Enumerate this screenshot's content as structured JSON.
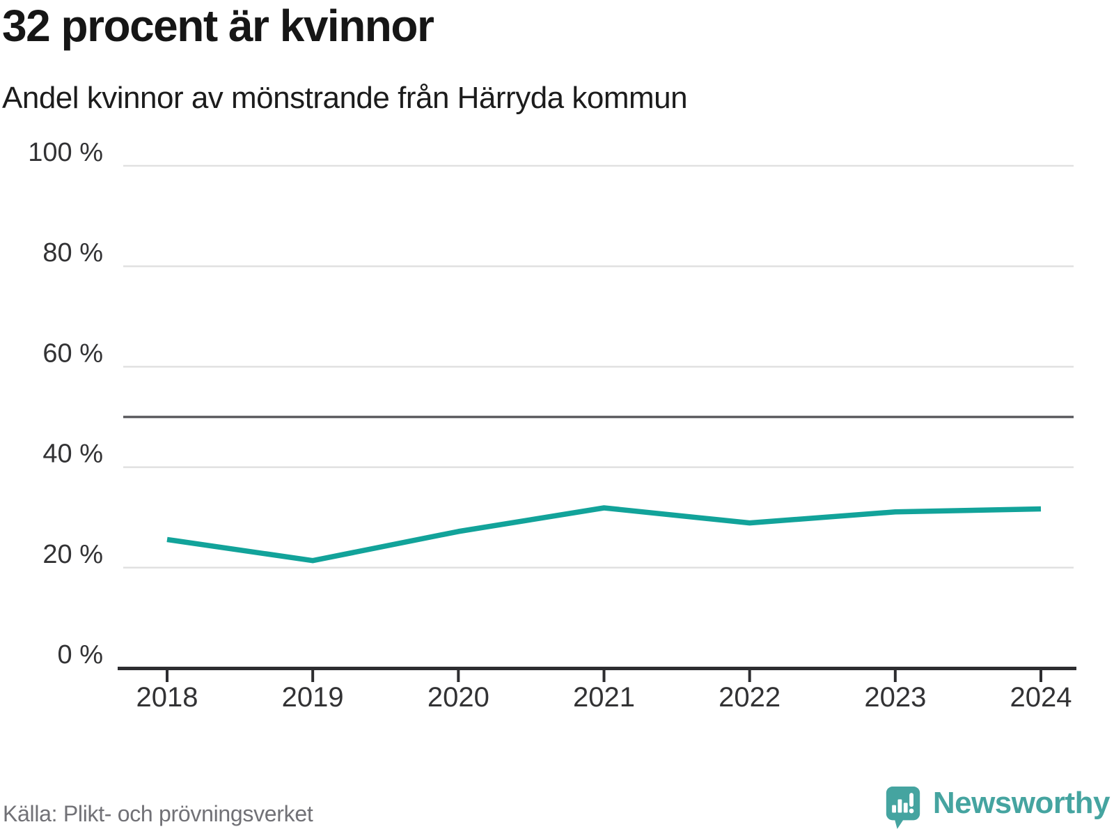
{
  "title": "32 procent är kvinnor",
  "subtitle": "Andel kvinnor av mönstrande från Härryda kommun",
  "source": "Källa: Plikt- och prövningsverket",
  "logo": {
    "text": "Newsworthy"
  },
  "colors": {
    "line": "#12a39a",
    "grid": "#e1e1e1",
    "reference_line": "#5d5d61",
    "axis": "#2d2d30",
    "tick_text": "#323234",
    "title_text": "#161616",
    "muted_text": "#717176",
    "logo": "#45a4a0"
  },
  "chart_data": {
    "type": "line",
    "title": "32 procent är kvinnor",
    "subtitle": "Andel kvinnor av mönstrande från Härryda kommun",
    "x": [
      2018,
      2019,
      2020,
      2021,
      2022,
      2023,
      2024
    ],
    "xtick_labels": [
      "2018",
      "2019",
      "2020",
      "2021",
      "2022",
      "2023",
      "2024"
    ],
    "series": [
      {
        "name": "Andel kvinnor av mönstrande",
        "values": [
          25.6,
          21.4,
          27.2,
          31.9,
          28.9,
          31.1,
          31.7
        ]
      }
    ],
    "unit": "%",
    "xlabel": "",
    "ylabel": "",
    "ylim": [
      0,
      100
    ],
    "yticks": [
      0,
      20,
      40,
      60,
      80,
      100
    ],
    "ytick_labels": [
      "0 %",
      "20 %",
      "40 %",
      "60 %",
      "80 %",
      "100 %"
    ],
    "reference_line": 50,
    "grid": "horizontal",
    "legend": "none",
    "source": "Källa: Plikt- och prövningsverket"
  }
}
